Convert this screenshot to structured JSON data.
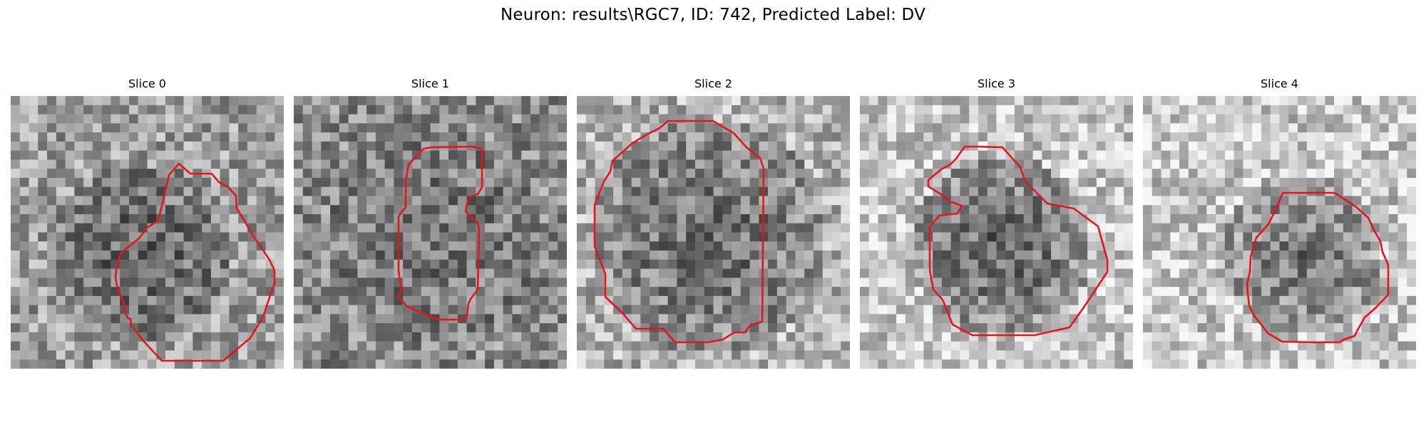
{
  "figure": {
    "title": "Neuron: results\\RGC7, ID: 742, Predicted Label: DV",
    "contour_color": "#e4161c"
  },
  "panels": [
    {
      "title": "Slice 0",
      "background": "noisy grayscale patch",
      "contour": "red segmentation outline"
    },
    {
      "title": "Slice 1",
      "background": "noisy grayscale patch",
      "contour": "red segmentation outline"
    },
    {
      "title": "Slice 2",
      "background": "noisy grayscale patch",
      "contour": "red segmentation outline"
    },
    {
      "title": "Slice 3",
      "background": "noisy grayscale patch",
      "contour": "red segmentation outline"
    },
    {
      "title": "Slice 4",
      "background": "noisy grayscale patch",
      "contour": "red segmentation outline"
    }
  ]
}
